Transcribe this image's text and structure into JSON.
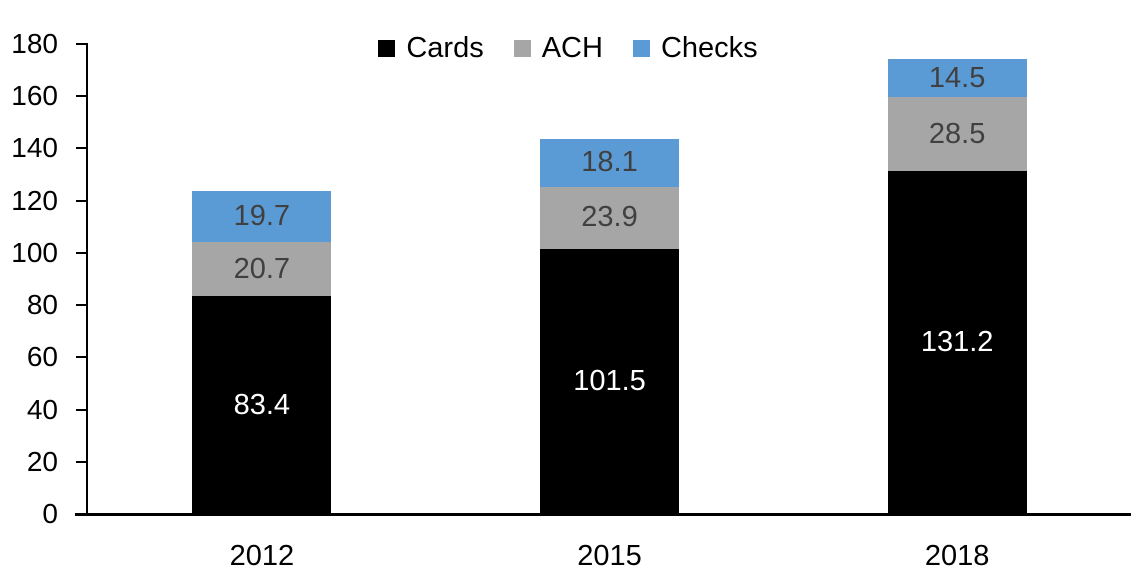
{
  "chart_data": {
    "type": "bar",
    "stacked": true,
    "title": "",
    "categories": [
      "2012",
      "2015",
      "2018"
    ],
    "series": [
      {
        "name": "Cards",
        "color": "#000000",
        "label_color": "#FFFFFF",
        "values": [
          83.4,
          101.5,
          131.2
        ]
      },
      {
        "name": "ACH",
        "color": "#A6A6A6",
        "label_color": "#404040",
        "values": [
          20.7,
          23.9,
          28.5
        ]
      },
      {
        "name": "Checks",
        "color": "#5B9BD5",
        "label_color": "#404040",
        "values": [
          19.7,
          18.1,
          14.5
        ]
      }
    ],
    "totals": [
      123.8,
      143.5,
      174.2
    ],
    "ylim": [
      0,
      180
    ],
    "ytick_step": 20,
    "ytick_labels": [
      "0",
      "20",
      "40",
      "60",
      "80",
      "100",
      "120",
      "140",
      "160",
      "180"
    ],
    "legend": [
      "Cards",
      "ACH",
      "Checks"
    ],
    "legend_position": "top-center",
    "grid": false,
    "axis_color": "#000000",
    "background": "#FFFFFF"
  }
}
